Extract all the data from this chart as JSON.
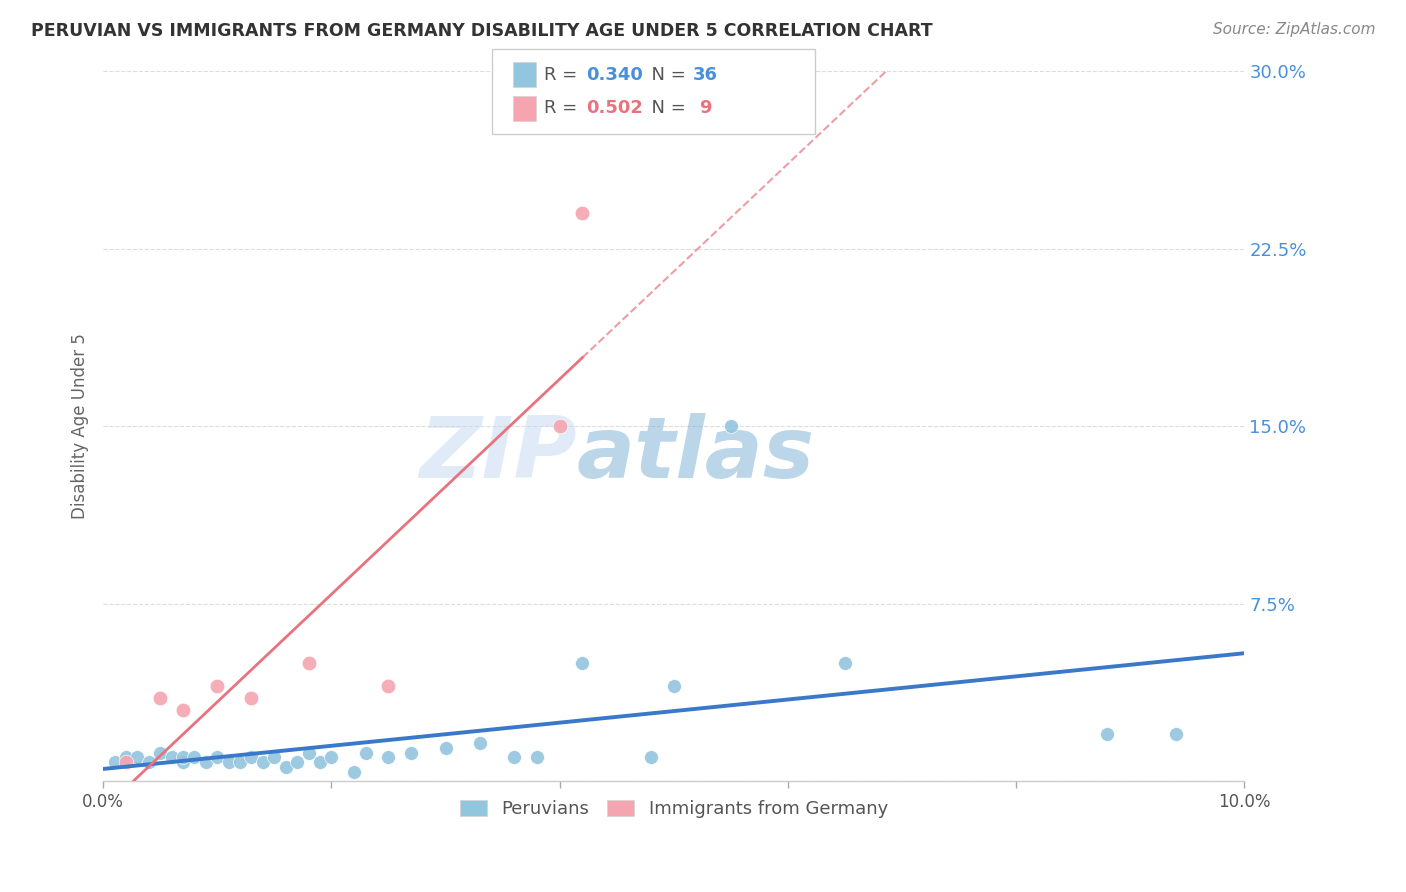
{
  "title": "PERUVIAN VS IMMIGRANTS FROM GERMANY DISABILITY AGE UNDER 5 CORRELATION CHART",
  "source": "Source: ZipAtlas.com",
  "xlabel": "",
  "ylabel": "Disability Age Under 5",
  "xlim": [
    0.0,
    0.1
  ],
  "ylim": [
    0.0,
    0.3
  ],
  "yticks": [
    0.0,
    0.075,
    0.15,
    0.225,
    0.3
  ],
  "ytick_labels": [
    "",
    "7.5%",
    "15.0%",
    "22.5%",
    "30.0%"
  ],
  "xticks": [
    0.0,
    0.02,
    0.04,
    0.06,
    0.08,
    0.1
  ],
  "xtick_labels": [
    "0.0%",
    "",
    "",
    "",
    "",
    "10.0%"
  ],
  "blue_color": "#92C5DE",
  "pink_color": "#F4A5B0",
  "trend_blue": "#3A78C9",
  "trend_pink": "#E8737F",
  "peruvians_x": [
    0.001,
    0.002,
    0.003,
    0.004,
    0.005,
    0.006,
    0.007,
    0.007,
    0.008,
    0.009,
    0.01,
    0.011,
    0.012,
    0.013,
    0.014,
    0.015,
    0.016,
    0.017,
    0.018,
    0.019,
    0.02,
    0.022,
    0.023,
    0.025,
    0.027,
    0.03,
    0.033,
    0.036,
    0.038,
    0.042,
    0.048,
    0.05,
    0.055,
    0.065,
    0.088,
    0.094
  ],
  "peruvians_y": [
    0.008,
    0.01,
    0.01,
    0.008,
    0.012,
    0.01,
    0.008,
    0.01,
    0.01,
    0.008,
    0.01,
    0.008,
    0.008,
    0.01,
    0.008,
    0.01,
    0.006,
    0.008,
    0.012,
    0.008,
    0.01,
    0.004,
    0.012,
    0.01,
    0.012,
    0.014,
    0.016,
    0.01,
    0.01,
    0.05,
    0.01,
    0.04,
    0.15,
    0.05,
    0.02,
    0.02
  ],
  "germany_x": [
    0.002,
    0.005,
    0.007,
    0.01,
    0.013,
    0.018,
    0.025,
    0.04,
    0.042
  ],
  "germany_y": [
    0.008,
    0.035,
    0.03,
    0.04,
    0.035,
    0.05,
    0.04,
    0.15,
    0.24
  ],
  "watermark_zip": "ZIP",
  "watermark_atlas": "atlas",
  "background_color": "#ffffff",
  "grid_color": "#dddddd"
}
